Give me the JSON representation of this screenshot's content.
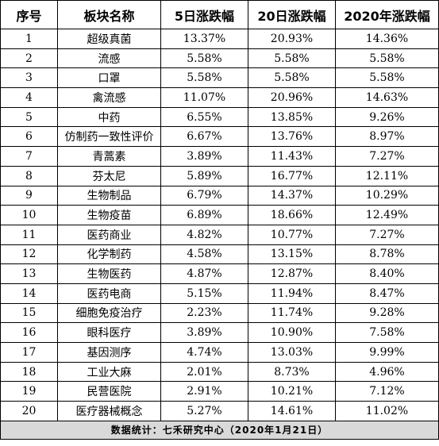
{
  "table": {
    "headers": [
      "序号",
      "板块名称",
      "5日涨跌幅",
      "20日涨跌幅",
      "2020年涨跌幅"
    ],
    "rows": [
      [
        "1",
        "超级真菌",
        "13.37%",
        "20.93%",
        "14.36%"
      ],
      [
        "2",
        "流感",
        "5.58%",
        "5.58%",
        "5.58%"
      ],
      [
        "3",
        "口罩",
        "5.58%",
        "5.58%",
        "5.58%"
      ],
      [
        "4",
        "禽流感",
        "11.07%",
        "20.96%",
        "14.63%"
      ],
      [
        "5",
        "中药",
        "6.55%",
        "13.85%",
        "9.26%"
      ],
      [
        "6",
        "仿制药一致性评价",
        "6.67%",
        "13.76%",
        "8.97%"
      ],
      [
        "7",
        "青蒿素",
        "3.89%",
        "11.43%",
        "7.27%"
      ],
      [
        "8",
        "芬太尼",
        "5.89%",
        "16.77%",
        "12.11%"
      ],
      [
        "9",
        "生物制品",
        "6.79%",
        "14.37%",
        "10.29%"
      ],
      [
        "10",
        "生物疫苗",
        "6.89%",
        "18.66%",
        "12.49%"
      ],
      [
        "11",
        "医药商业",
        "4.82%",
        "10.77%",
        "7.27%"
      ],
      [
        "12",
        "化学制药",
        "4.58%",
        "13.15%",
        "8.78%"
      ],
      [
        "13",
        "生物医药",
        "4.87%",
        "12.87%",
        "8.40%"
      ],
      [
        "14",
        "医药电商",
        "5.15%",
        "11.94%",
        "8.47%"
      ],
      [
        "15",
        "细胞免疫治疗",
        "2.23%",
        "11.74%",
        "9.28%"
      ],
      [
        "16",
        "眼科医疗",
        "3.89%",
        "10.90%",
        "7.58%"
      ],
      [
        "17",
        "基因测序",
        "4.74%",
        "13.03%",
        "9.99%"
      ],
      [
        "18",
        "工业大麻",
        "2.01%",
        "8.73%",
        "4.96%"
      ],
      [
        "19",
        "民营医院",
        "2.91%",
        "10.21%",
        "7.12%"
      ],
      [
        "20",
        "医疗器械概念",
        "5.27%",
        "14.61%",
        "11.02%"
      ]
    ],
    "footer": "数据统计：七禾研究中心（2020年1月21日）"
  }
}
